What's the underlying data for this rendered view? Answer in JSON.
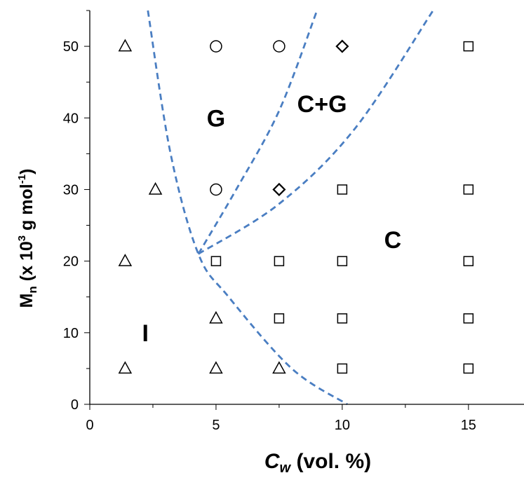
{
  "chart_data": {
    "type": "scatter",
    "title": "",
    "xlabel": {
      "main": "C",
      "sub": "w",
      "rest": " (vol. %)"
    },
    "ylabel": {
      "main": "M",
      "sub": "n",
      "part1": "  (x 10",
      "sup1": "3",
      "part2": " g mol",
      "sup2": "-1",
      "part3": ")"
    },
    "xlim": [
      0,
      17.2
    ],
    "ylim": [
      0,
      55
    ],
    "xticks": [
      0,
      5,
      10,
      15
    ],
    "yticks": [
      0,
      10,
      20,
      30,
      40,
      50
    ],
    "grid": false,
    "legend": "none",
    "colors": {
      "boundary": "#4A7EC2",
      "marker": "#000000",
      "axis": "#000000"
    },
    "series": [
      {
        "symbol": "triangle",
        "points": [
          [
            1.4,
            50
          ],
          [
            2.6,
            30
          ],
          [
            1.4,
            20
          ],
          [
            5,
            12
          ],
          [
            1.4,
            5
          ],
          [
            5,
            5
          ],
          [
            7.5,
            5
          ]
        ]
      },
      {
        "symbol": "circle",
        "points": [
          [
            5,
            50
          ],
          [
            7.5,
            50
          ],
          [
            5,
            30
          ]
        ]
      },
      {
        "symbol": "diamond",
        "points": [
          [
            10,
            50
          ],
          [
            7.5,
            30
          ]
        ]
      },
      {
        "symbol": "square",
        "points": [
          [
            15,
            50
          ],
          [
            10,
            30
          ],
          [
            15,
            30
          ],
          [
            5,
            20
          ],
          [
            7.5,
            20
          ],
          [
            10,
            20
          ],
          [
            15,
            20
          ],
          [
            7.5,
            12
          ],
          [
            10,
            12
          ],
          [
            15,
            12
          ],
          [
            10,
            5
          ],
          [
            15,
            5
          ]
        ]
      }
    ],
    "boundaries": [
      {
        "style": "dashed",
        "points": [
          [
            2.3,
            55
          ],
          [
            3.2,
            35
          ],
          [
            4.3,
            21
          ],
          [
            5.5,
            15
          ],
          [
            8,
            5
          ],
          [
            10.2,
            0
          ]
        ]
      },
      {
        "style": "dashed",
        "points": [
          [
            4.3,
            21
          ],
          [
            5.8,
            30
          ],
          [
            7.5,
            41
          ],
          [
            9,
            55
          ]
        ]
      },
      {
        "style": "dashed",
        "points": [
          [
            4.3,
            21
          ],
          [
            7.5,
            28
          ],
          [
            10.5,
            38.5
          ],
          [
            13.6,
            55
          ]
        ]
      }
    ],
    "annotations": [
      {
        "text": "G",
        "x": 5.0,
        "y": 40
      },
      {
        "text": "C+G",
        "x": 9.2,
        "y": 42
      },
      {
        "text": "C",
        "x": 12.0,
        "y": 23
      },
      {
        "text": "I",
        "x": 2.2,
        "y": 10
      }
    ]
  }
}
